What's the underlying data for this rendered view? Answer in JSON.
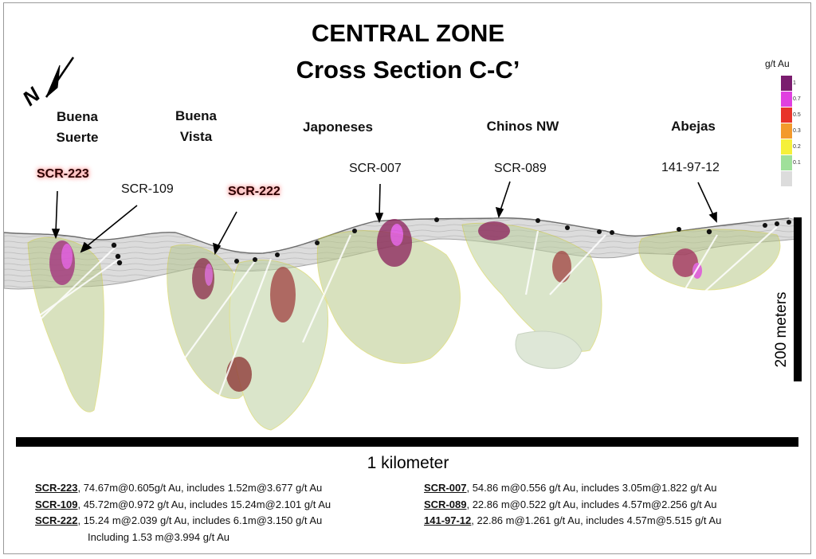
{
  "title": "CENTRAL ZONE",
  "subtitle": "Cross Section C-C’",
  "north_arrow_label": "N",
  "zones": [
    {
      "line1": "Buena",
      "line2": "Suerte"
    },
    {
      "line1": "Buena",
      "line2": "Vista"
    },
    {
      "line1": "Japoneses",
      "line2": ""
    },
    {
      "line1": "Chinos NW",
      "line2": ""
    },
    {
      "line1": "Abejas",
      "line2": ""
    }
  ],
  "drill_holes": [
    {
      "label": "SCR-223",
      "highlighted": true
    },
    {
      "label": "SCR-109",
      "highlighted": false
    },
    {
      "label": "SCR-222",
      "highlighted": true
    },
    {
      "label": "SCR-007",
      "highlighted": false
    },
    {
      "label": "SCR-089",
      "highlighted": false
    },
    {
      "label": "141-97-12",
      "highlighted": false
    }
  ],
  "legend": {
    "title": "g/t Au",
    "entries": [
      {
        "label": "1",
        "color": "#7a1c6e"
      },
      {
        "label": "0.7",
        "color": "#e040e0"
      },
      {
        "label": "0.5",
        "color": "#e8332a"
      },
      {
        "label": "0.3",
        "color": "#f39a2c"
      },
      {
        "label": "0.2",
        "color": "#f5f03a"
      },
      {
        "label": "0.1",
        "color": "#9fe09a"
      },
      {
        "label": "",
        "color": "#dcdcdc"
      }
    ]
  },
  "scale_vertical": "200 meters",
  "scale_horizontal": "1 kilometer",
  "results": [
    {
      "id": "SCR-223",
      "text": ", 74.67m@0.605g/t Au, includes 1.52m@3.677 g/t Au"
    },
    {
      "id": "SCR-109",
      "text": ", 45.72m@0.972 g/t Au, includes 15.24m@2.101 g/t Au"
    },
    {
      "id": "SCR-222",
      "text": ", 15.24 m@2.039 g/t Au, includes 6.1m@3.150 g/t Au"
    },
    {
      "id": "",
      "text": "Including 1.53 m@3.994 g/t Au"
    },
    {
      "id": "SCR-007",
      "text": ", 54.86 m@0.556 g/t Au, includes 3.05m@1.822 g/t Au"
    },
    {
      "id": "SCR-089",
      "text": ", 22.86 m@0.522 g/t Au, includes 4.57m@2.256 g/t Au"
    },
    {
      "id": "141-97-12",
      "text": ", 22.86 m@1.261 g/t Au, includes 4.57m@5.515 g/t Au"
    }
  ]
}
